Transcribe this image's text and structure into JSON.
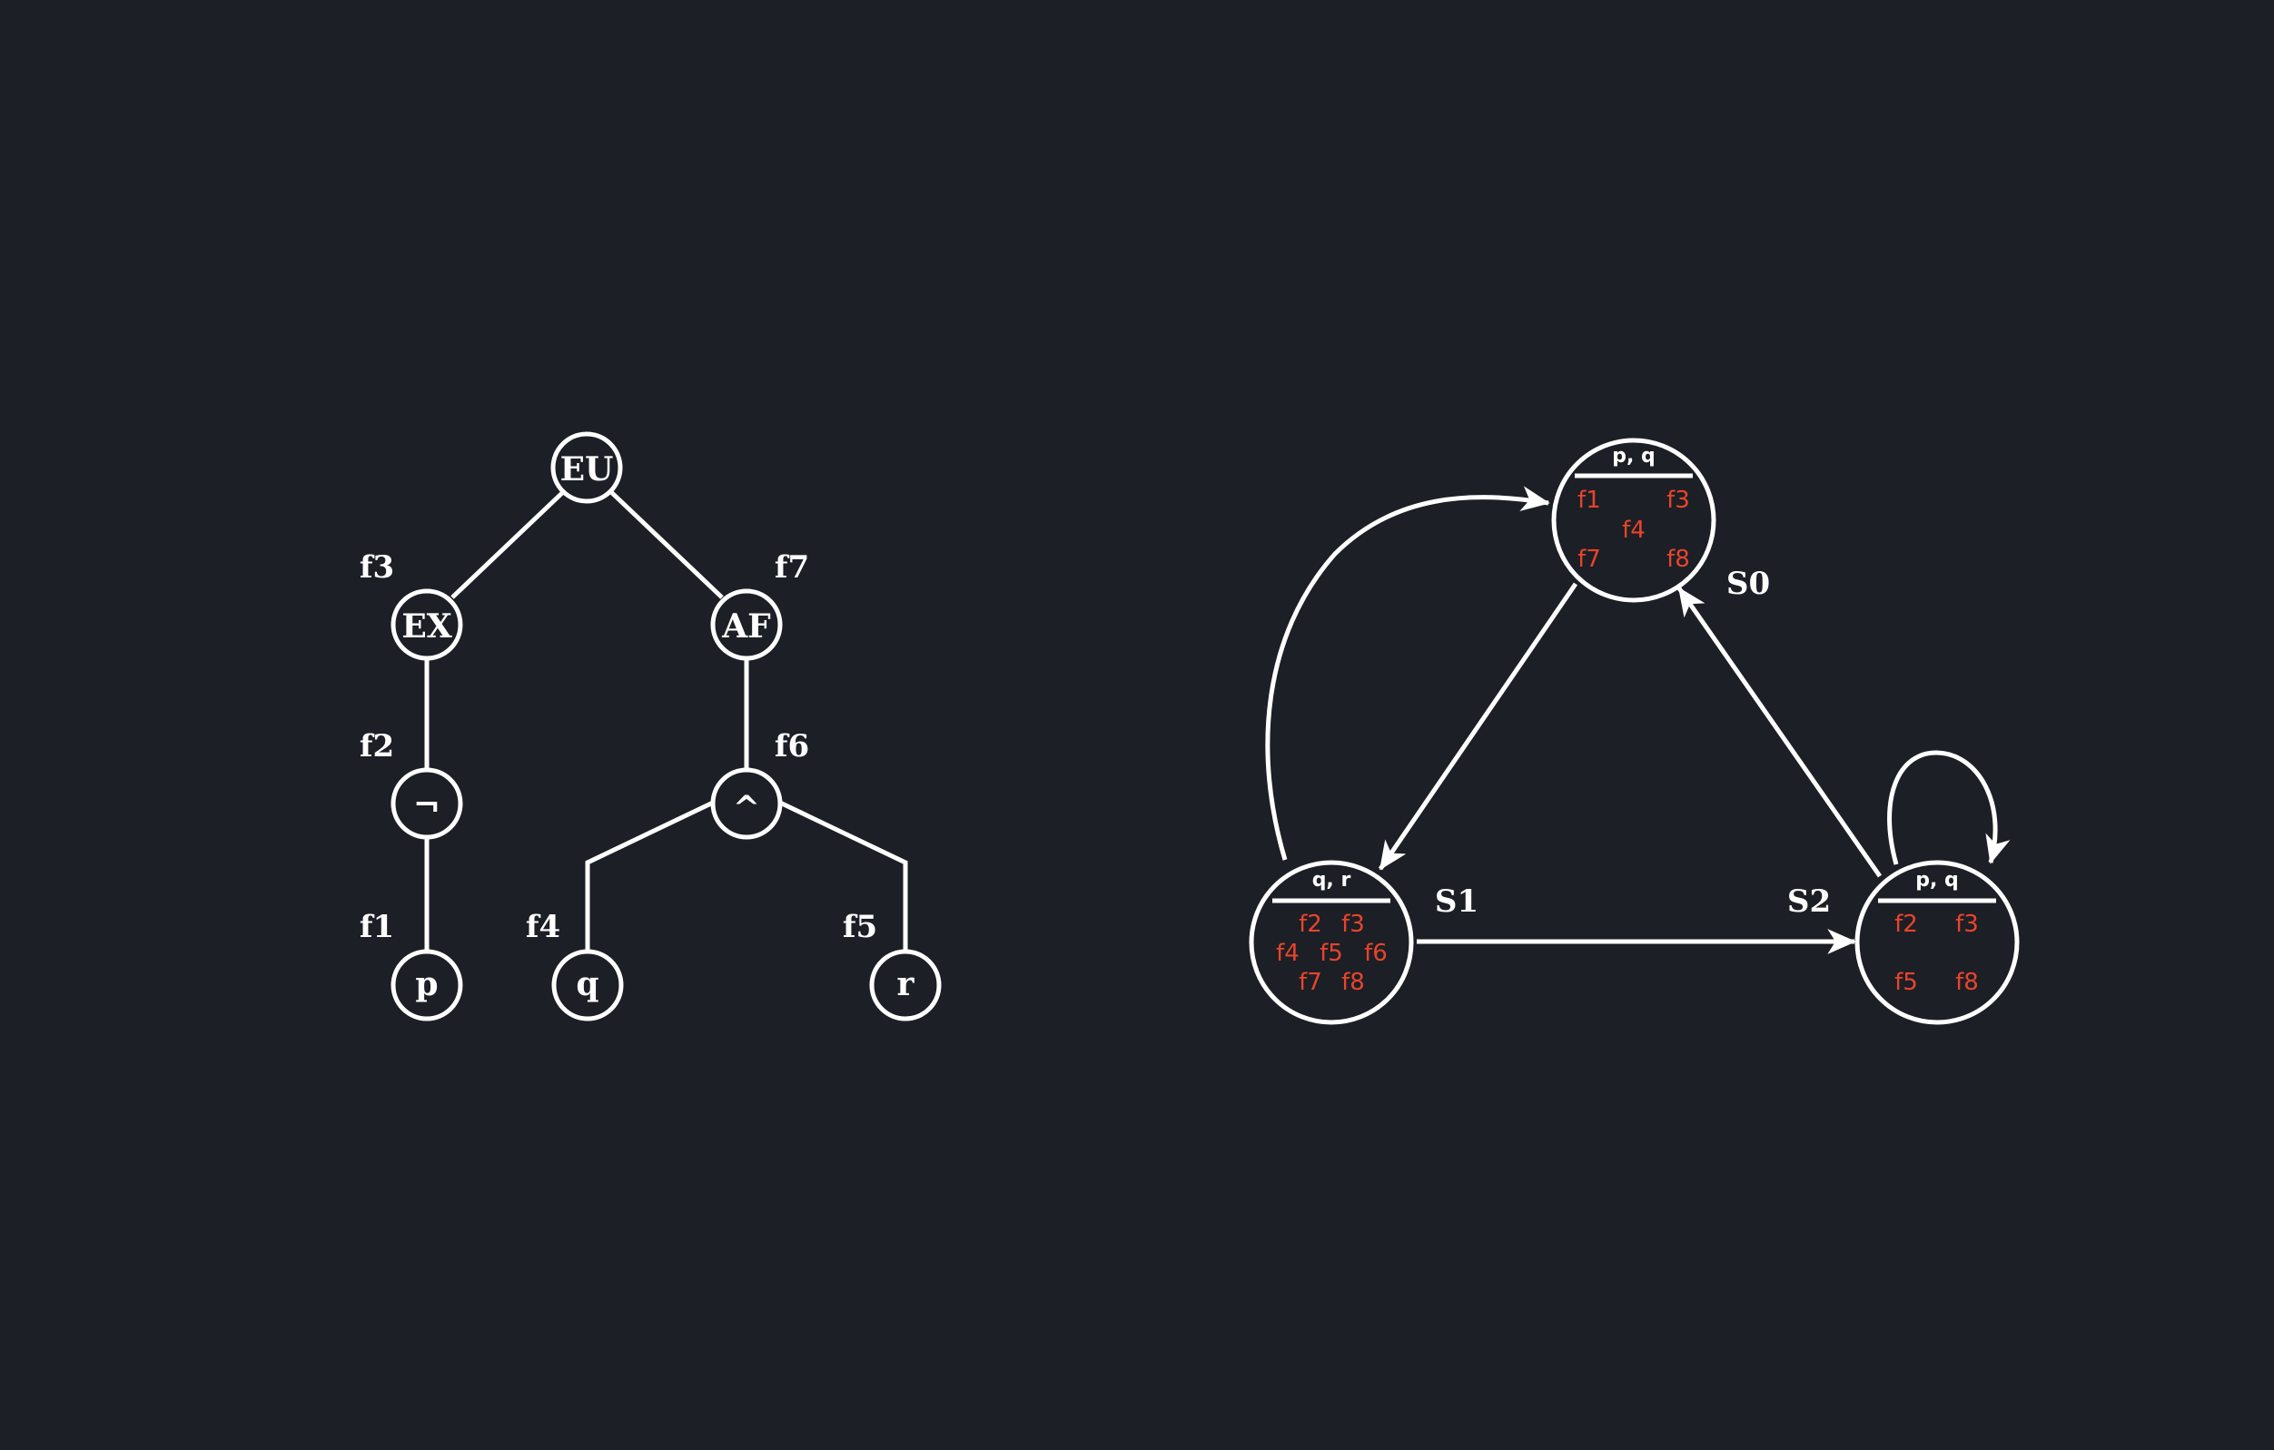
{
  "colors": {
    "background": "#1c1f25",
    "stroke": "#ffffff",
    "formula": "#e8442c"
  },
  "tree": {
    "nodes": {
      "eu": "EU",
      "ex": "EX",
      "af": "AF",
      "not": "¬",
      "and": "^",
      "p": "p",
      "q": "q",
      "r": "r"
    },
    "labels": {
      "f1": "f1",
      "f2": "f2",
      "f3": "f3",
      "f4": "f4",
      "f5": "f5",
      "f6": "f6",
      "f7": "f7"
    }
  },
  "kripke": {
    "states": [
      {
        "id": "s0",
        "name": "S0",
        "props": "p, q",
        "formulas": [
          "f1",
          "f3",
          "f4",
          "f7",
          "f8"
        ]
      },
      {
        "id": "s1",
        "name": "S1",
        "props": "q, r",
        "formulas": [
          "f2",
          "f3",
          "f4",
          "f5",
          "f6",
          "f7",
          "f8"
        ]
      },
      {
        "id": "s2",
        "name": "S2",
        "props": "p, q",
        "formulas": [
          "f2",
          "f3",
          "f5",
          "f8"
        ]
      }
    ],
    "transitions": [
      {
        "from": "S0",
        "to": "S1"
      },
      {
        "from": "S1",
        "to": "S0"
      },
      {
        "from": "S1",
        "to": "S2"
      },
      {
        "from": "S2",
        "to": "S0"
      },
      {
        "from": "S2",
        "to": "S2"
      }
    ]
  }
}
